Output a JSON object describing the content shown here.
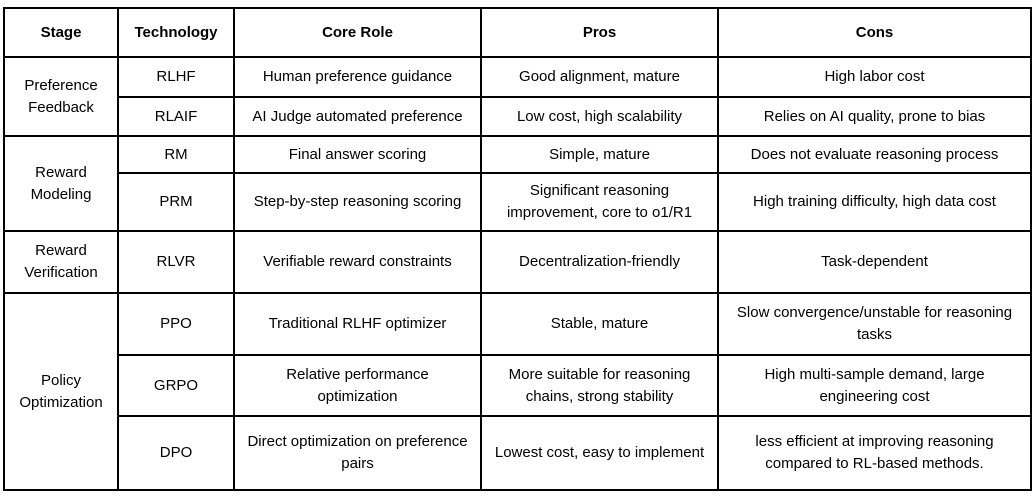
{
  "table": {
    "headers": [
      "Stage",
      "Technology",
      "Core Role",
      "Pros",
      "Cons"
    ],
    "groups": [
      {
        "stage": "Preference Feedback",
        "rows": [
          {
            "technology": "RLHF",
            "core_role": "Human preference guidance",
            "pros": "Good alignment, mature",
            "cons": "High labor cost"
          },
          {
            "technology": "RLAIF",
            "core_role": "AI Judge automated preference",
            "pros": "Low cost, high scalability",
            "cons": "Relies on AI quality, prone to bias"
          }
        ]
      },
      {
        "stage": "Reward Modeling",
        "rows": [
          {
            "technology": "RM",
            "core_role": "Final answer scoring",
            "pros": "Simple, mature",
            "cons": "Does not evaluate reasoning process"
          },
          {
            "technology": "PRM",
            "core_role": "Step-by-step reasoning scoring",
            "pros": "Significant reasoning improvement, core to o1/R1",
            "cons": "High training difficulty, high data cost"
          }
        ]
      },
      {
        "stage": "Reward Verification",
        "rows": [
          {
            "technology": "RLVR",
            "core_role": "Verifiable reward constraints",
            "pros": "Decentralization-friendly",
            "cons": "Task-dependent"
          }
        ]
      },
      {
        "stage": "Policy Optimization",
        "rows": [
          {
            "technology": "PPO",
            "core_role": "Traditional RLHF optimizer",
            "pros": "Stable, mature",
            "cons": "Slow convergence/unstable for reasoning tasks"
          },
          {
            "technology": "GRPO",
            "core_role": "Relative performance optimization",
            "pros": "More suitable for reasoning chains, strong stability",
            "cons": "High multi-sample demand, large engineering cost"
          },
          {
            "technology": "DPO",
            "core_role": "Direct optimization on preference pairs",
            "pros": "Lowest cost, easy to implement",
            "cons": "less efficient at improving reasoning compared to RL-based methods."
          }
        ]
      }
    ],
    "colors": {
      "border": "#000000",
      "text": "#000000",
      "background": "#ffffff"
    }
  }
}
